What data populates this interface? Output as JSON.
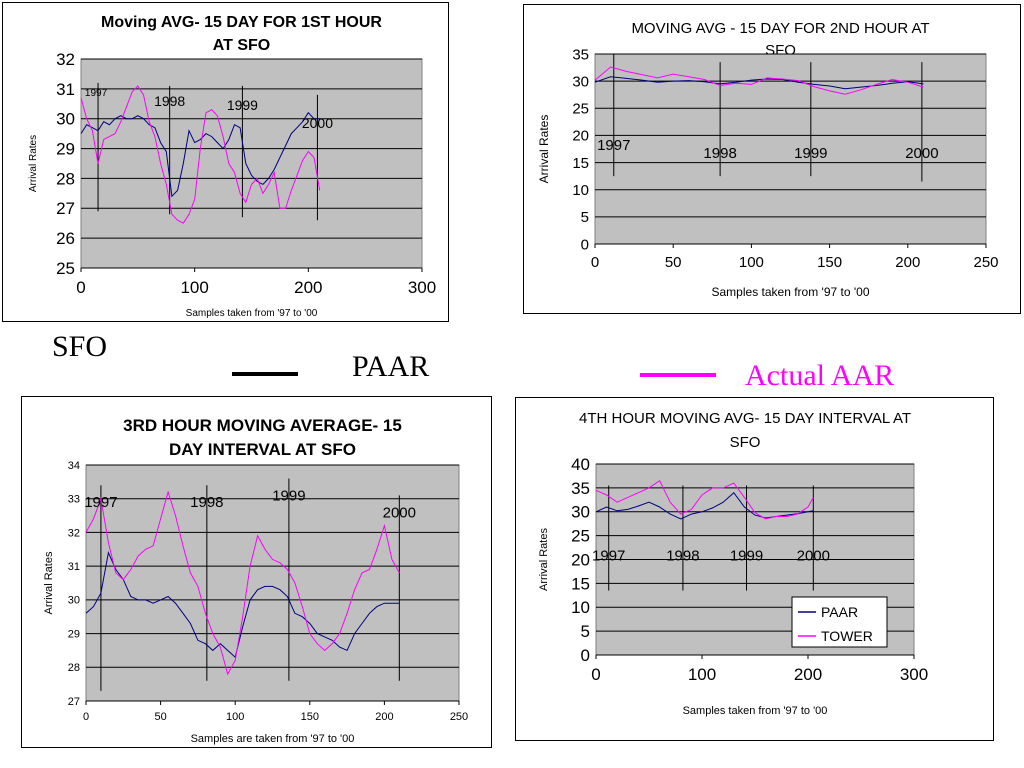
{
  "legend": {
    "location_label": "SFO",
    "paar_label": "PAAR",
    "actual_label": "Actual AAR",
    "paar_color": "#000000",
    "actual_color": "#ff00ff"
  },
  "chart_data": [
    {
      "id": "c1",
      "type": "line",
      "title_lines": [
        "Moving AVG- 15 DAY FOR 1ST HOUR",
        "AT SFO"
      ],
      "title_bold": true,
      "xlabel": "Samples taken from '97 to '00",
      "ylabel": "Arrival Rates",
      "xlim": [
        0,
        300
      ],
      "ylim": [
        25,
        32
      ],
      "xticks": [
        0,
        100,
        200,
        300
      ],
      "yticks": [
        25,
        26,
        27,
        28,
        29,
        30,
        31,
        32
      ],
      "year_markers": [
        {
          "label": "1997",
          "x": 15,
          "top": 31.2,
          "bottom": 26.9
        },
        {
          "label": "1998",
          "x": 78,
          "top": 31.1,
          "bottom": 26.8
        },
        {
          "label": "1999",
          "x": 142,
          "top": 31.1,
          "bottom": 26.7
        },
        {
          "label": "2000",
          "x": 208,
          "top": 30.8,
          "bottom": 26.6
        }
      ],
      "series": [
        {
          "color": "#000080",
          "x": [
            0,
            5,
            10,
            15,
            20,
            25,
            30,
            35,
            40,
            45,
            50,
            55,
            60,
            65,
            70,
            75,
            80,
            85,
            90,
            95,
            100,
            105,
            110,
            115,
            120,
            125,
            130,
            135,
            140,
            145,
            150,
            155,
            160,
            165,
            170,
            175,
            180,
            185,
            190,
            195,
            200,
            205,
            210
          ],
          "values": [
            29.5,
            29.8,
            29.7,
            29.6,
            29.9,
            29.8,
            30.0,
            30.1,
            30.0,
            30.0,
            30.1,
            30.0,
            29.8,
            29.7,
            29.2,
            28.9,
            27.4,
            27.6,
            28.5,
            29.6,
            29.2,
            29.3,
            29.5,
            29.4,
            29.2,
            29.0,
            29.3,
            29.8,
            29.7,
            28.5,
            28.1,
            27.9,
            27.8,
            28.0,
            28.3,
            28.7,
            29.1,
            29.5,
            29.7,
            29.9,
            30.2,
            30.0,
            30.0
          ]
        },
        {
          "color": "#ff00ff",
          "x": [
            0,
            5,
            10,
            15,
            20,
            25,
            30,
            35,
            40,
            45,
            50,
            55,
            60,
            65,
            70,
            75,
            80,
            85,
            90,
            95,
            100,
            105,
            110,
            115,
            120,
            125,
            130,
            135,
            140,
            145,
            150,
            155,
            160,
            165,
            170,
            175,
            180,
            185,
            190,
            195,
            200,
            205,
            210
          ],
          "values": [
            30.7,
            30.0,
            29.6,
            28.5,
            29.3,
            29.4,
            29.5,
            29.9,
            30.4,
            30.9,
            31.1,
            30.8,
            29.9,
            29.4,
            28.5,
            27.8,
            26.8,
            26.6,
            26.5,
            26.8,
            27.3,
            29.0,
            30.2,
            30.3,
            30.1,
            29.4,
            28.5,
            28.2,
            27.5,
            27.2,
            27.8,
            28.0,
            27.5,
            27.8,
            28.2,
            27.0,
            27.0,
            27.6,
            28.1,
            28.6,
            28.9,
            28.7,
            27.6
          ]
        }
      ]
    },
    {
      "id": "c2",
      "type": "line",
      "title_lines": [
        "MOVING AVG - 15 DAY FOR 2ND HOUR AT",
        "SFO"
      ],
      "title_bold": false,
      "xlabel": "Samples taken from '97 to '00",
      "ylabel": "Arrival Rates",
      "xlim": [
        0,
        250
      ],
      "ylim": [
        0,
        35
      ],
      "xticks": [
        0,
        50,
        100,
        150,
        200,
        250
      ],
      "yticks": [
        0,
        5,
        10,
        15,
        20,
        25,
        30,
        35
      ],
      "year_markers": [
        {
          "label": "1997",
          "x": 12,
          "top": 35,
          "bottom": 12.5
        },
        {
          "label": "1998",
          "x": 80,
          "top": 33.5,
          "bottom": 12.5
        },
        {
          "label": "1999",
          "x": 138,
          "top": 33.5,
          "bottom": 12.5
        },
        {
          "label": "2000",
          "x": 209,
          "top": 33.5,
          "bottom": 11.5
        }
      ],
      "series": [
        {
          "color": "#000080",
          "x": [
            0,
            10,
            20,
            30,
            40,
            50,
            60,
            70,
            80,
            90,
            100,
            110,
            120,
            130,
            140,
            150,
            160,
            170,
            180,
            190,
            200,
            210
          ],
          "values": [
            29.8,
            30.8,
            30.5,
            30.2,
            29.8,
            30.0,
            30.1,
            29.9,
            29.5,
            29.8,
            30.2,
            30.4,
            30.3,
            29.8,
            29.4,
            29.1,
            28.6,
            28.9,
            29.2,
            29.6,
            29.9,
            29.5
          ]
        },
        {
          "color": "#ff00ff",
          "x": [
            0,
            10,
            20,
            30,
            40,
            50,
            60,
            70,
            80,
            90,
            100,
            110,
            120,
            130,
            140,
            150,
            160,
            170,
            180,
            190,
            200,
            210
          ],
          "values": [
            30.2,
            32.6,
            31.8,
            31.2,
            30.6,
            31.3,
            30.8,
            30.3,
            29.2,
            29.6,
            29.4,
            30.6,
            30.4,
            30.1,
            29.0,
            28.2,
            27.6,
            28.4,
            29.4,
            30.3,
            29.8,
            28.9
          ]
        }
      ]
    },
    {
      "id": "c3",
      "type": "line",
      "title_lines": [
        "3RD HOUR MOVING AVERAGE- 15",
        "DAY INTERVAL AT SFO"
      ],
      "title_bold": true,
      "xlabel": "Samples are taken from '97 to '00",
      "ylabel": "Arrival Rates",
      "xlim": [
        0,
        250
      ],
      "ylim": [
        27,
        34
      ],
      "xticks": [
        0,
        50,
        100,
        150,
        200,
        250
      ],
      "yticks": [
        27,
        28,
        29,
        30,
        31,
        32,
        33,
        34
      ],
      "year_markers": [
        {
          "label": "1997",
          "x": 10,
          "top": 33.4,
          "bottom": 27.3
        },
        {
          "label": "1998",
          "x": 81,
          "top": 33.4,
          "bottom": 27.6
        },
        {
          "label": "1999",
          "x": 136,
          "top": 33.6,
          "bottom": 27.6
        },
        {
          "label": "2000",
          "x": 210,
          "top": 33.1,
          "bottom": 27.6
        }
      ],
      "series": [
        {
          "color": "#000080",
          "x": [
            0,
            5,
            10,
            15,
            20,
            25,
            30,
            35,
            40,
            45,
            50,
            55,
            60,
            65,
            70,
            75,
            80,
            85,
            90,
            95,
            100,
            105,
            110,
            115,
            120,
            125,
            130,
            135,
            140,
            145,
            150,
            155,
            160,
            165,
            170,
            175,
            180,
            185,
            190,
            195,
            200,
            205,
            210
          ],
          "values": [
            29.6,
            29.8,
            30.2,
            31.4,
            30.9,
            30.6,
            30.1,
            30.0,
            30.0,
            29.9,
            30.0,
            30.1,
            29.9,
            29.6,
            29.3,
            28.8,
            28.7,
            28.5,
            28.7,
            28.5,
            28.3,
            29.2,
            30.0,
            30.3,
            30.4,
            30.4,
            30.3,
            30.1,
            29.6,
            29.5,
            29.3,
            29.0,
            28.9,
            28.8,
            28.6,
            28.5,
            29.0,
            29.3,
            29.6,
            29.8,
            29.9,
            29.9,
            29.9
          ]
        },
        {
          "color": "#ff00ff",
          "x": [
            0,
            5,
            10,
            15,
            20,
            25,
            30,
            35,
            40,
            45,
            50,
            55,
            60,
            65,
            70,
            75,
            80,
            85,
            90,
            95,
            100,
            105,
            110,
            115,
            120,
            125,
            130,
            135,
            140,
            145,
            150,
            155,
            160,
            165,
            170,
            175,
            180,
            185,
            190,
            195,
            200,
            205,
            210
          ],
          "values": [
            32.0,
            32.4,
            33.0,
            31.7,
            30.8,
            30.6,
            30.9,
            31.3,
            31.5,
            31.6,
            32.4,
            33.2,
            32.5,
            31.6,
            30.8,
            30.4,
            29.6,
            29.0,
            28.6,
            27.8,
            28.2,
            29.5,
            31.0,
            31.9,
            31.5,
            31.2,
            31.1,
            30.9,
            30.5,
            29.8,
            29.0,
            28.7,
            28.5,
            28.7,
            29.0,
            29.6,
            30.3,
            30.8,
            30.9,
            31.5,
            32.2,
            31.2,
            30.8
          ]
        }
      ]
    },
    {
      "id": "c4",
      "type": "line",
      "title_lines": [
        "4TH HOUR MOVING AVG- 15 DAY INTERVAL AT",
        "SFO"
      ],
      "title_bold": false,
      "xlabel": "Samples taken from '97 to '00",
      "ylabel": "Arrival Rates",
      "xlim": [
        0,
        300
      ],
      "ylim": [
        0,
        40
      ],
      "xticks": [
        0,
        100,
        200,
        300
      ],
      "yticks": [
        0,
        5,
        10,
        15,
        20,
        25,
        30,
        35,
        40
      ],
      "year_markers": [
        {
          "label": "1997",
          "x": 12,
          "top": 35.5,
          "bottom": 13.5
        },
        {
          "label": "1998",
          "x": 82,
          "top": 35.5,
          "bottom": 13.5
        },
        {
          "label": "1999",
          "x": 142,
          "top": 35.5,
          "bottom": 13.5
        },
        {
          "label": "2000",
          "x": 205,
          "top": 35.5,
          "bottom": 13.5
        }
      ],
      "legend_entries": [
        {
          "label": "PAAR",
          "color": "#000080"
        },
        {
          "label": "TOWER",
          "color": "#ff00ff"
        }
      ],
      "series": [
        {
          "color": "#000080",
          "x": [
            0,
            10,
            20,
            30,
            40,
            50,
            60,
            70,
            80,
            90,
            100,
            110,
            120,
            130,
            140,
            150,
            160,
            170,
            180,
            190,
            200,
            205
          ],
          "values": [
            30.0,
            31.0,
            30.2,
            30.5,
            31.2,
            32.0,
            31.0,
            29.5,
            28.5,
            29.5,
            30.0,
            30.8,
            32.0,
            34.0,
            31.0,
            29.3,
            28.7,
            29.0,
            29.3,
            29.6,
            30.0,
            30.2
          ]
        },
        {
          "color": "#ff00ff",
          "x": [
            0,
            10,
            20,
            30,
            40,
            50,
            60,
            70,
            80,
            90,
            100,
            110,
            120,
            130,
            140,
            150,
            160,
            170,
            180,
            190,
            200,
            205
          ],
          "values": [
            34.5,
            33.5,
            32.0,
            33.0,
            34.0,
            35.0,
            36.5,
            32.0,
            29.5,
            30.5,
            33.5,
            35.0,
            35.0,
            36.0,
            33.0,
            29.8,
            28.5,
            29.0,
            29.0,
            29.5,
            31.0,
            33.0
          ]
        }
      ]
    }
  ]
}
